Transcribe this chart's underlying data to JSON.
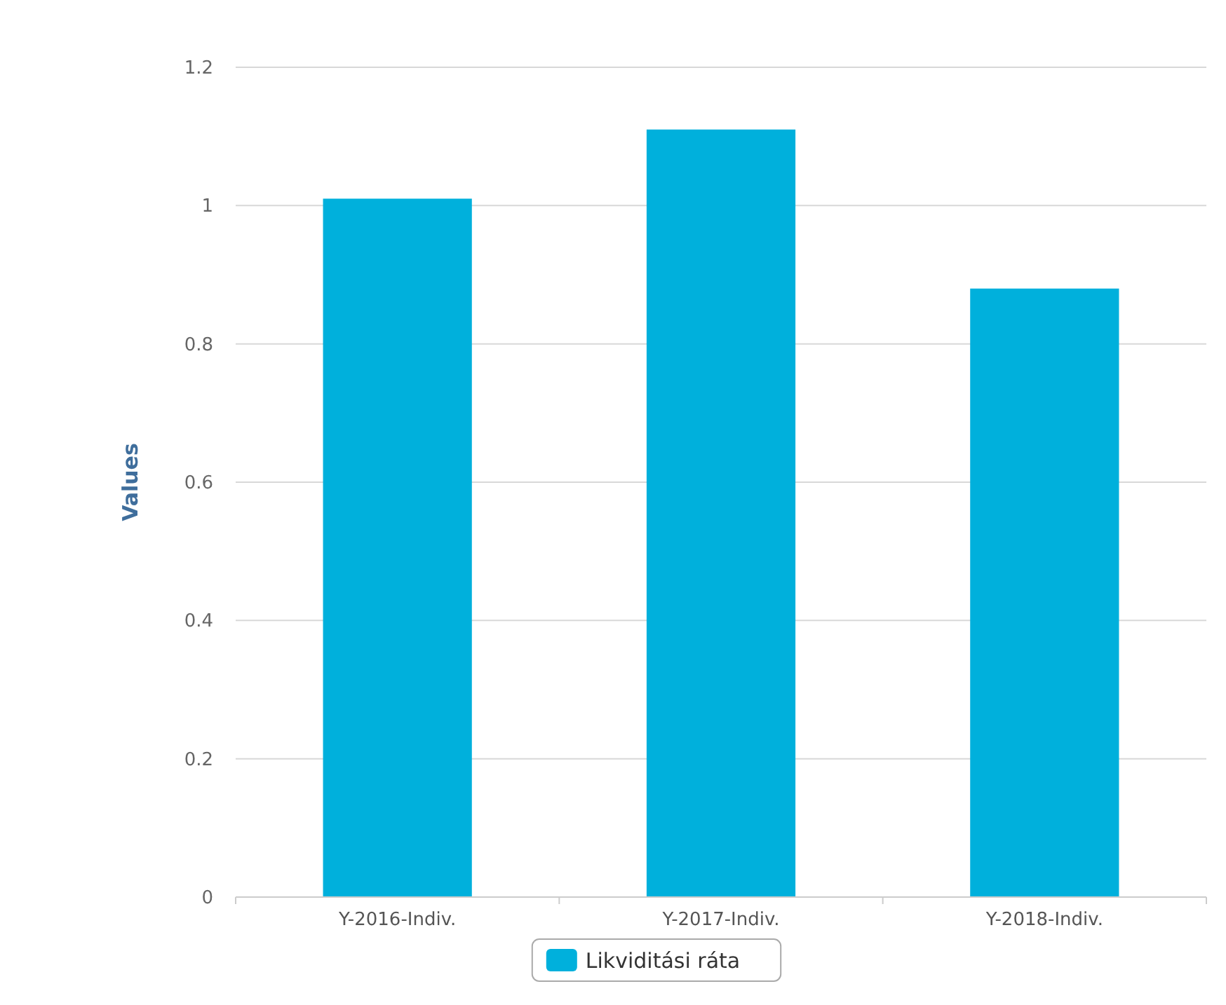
{
  "chart_data": {
    "type": "bar",
    "ylabel": "Values",
    "categories": [
      "Y-2016-Indiv.",
      "Y-2017-Indiv.",
      "Y-2018-Indiv."
    ],
    "series": [
      {
        "name": "Likviditási ráta",
        "color": "#00b0dc",
        "values": [
          1.01,
          1.11,
          0.88
        ]
      }
    ],
    "ylim": [
      0,
      1.2
    ],
    "yticks": [
      0,
      0.2,
      0.4,
      0.6,
      0.8,
      {
        "value": 1,
        "label": "1"
      },
      1.2
    ],
    "grid": "y",
    "legend": "bottom"
  }
}
